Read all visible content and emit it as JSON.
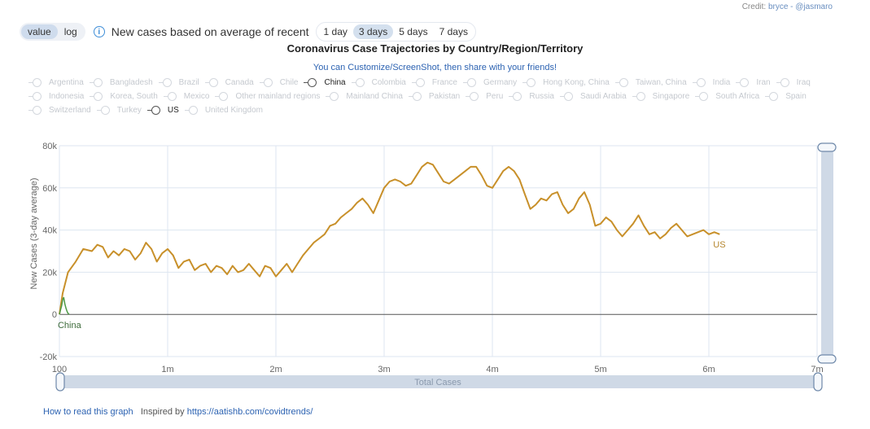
{
  "credit": {
    "label": "Credit:",
    "author": "bryce - @jasmaro"
  },
  "toolbar": {
    "modes": [
      {
        "label": "value",
        "active": true
      },
      {
        "label": "log",
        "active": false
      }
    ],
    "recent_label": "New cases based on average of recent",
    "days": [
      {
        "label": "1 day",
        "active": false
      },
      {
        "label": "3 days",
        "active": true
      },
      {
        "label": "5 days",
        "active": false
      },
      {
        "label": "7 days",
        "active": false
      }
    ]
  },
  "title": "Coronavirus Case Trajectories by Country/Region/Territory",
  "subtitle": "You can Customize/ScreenShot, then share with your friends!",
  "countries": [
    {
      "name": "Argentina",
      "selected": false
    },
    {
      "name": "Bangladesh",
      "selected": false
    },
    {
      "name": "Brazil",
      "selected": false
    },
    {
      "name": "Canada",
      "selected": false
    },
    {
      "name": "Chile",
      "selected": false
    },
    {
      "name": "China",
      "selected": true
    },
    {
      "name": "Colombia",
      "selected": false
    },
    {
      "name": "France",
      "selected": false
    },
    {
      "name": "Germany",
      "selected": false
    },
    {
      "name": "Hong Kong, China",
      "selected": false
    },
    {
      "name": "Taiwan, China",
      "selected": false
    },
    {
      "name": "India",
      "selected": false
    },
    {
      "name": "Iran",
      "selected": false
    },
    {
      "name": "Iraq",
      "selected": false
    },
    {
      "name": "Indonesia",
      "selected": false
    },
    {
      "name": "Korea, South",
      "selected": false
    },
    {
      "name": "Mexico",
      "selected": false
    },
    {
      "name": "Other mainland regions",
      "selected": false
    },
    {
      "name": "Mainland China",
      "selected": false
    },
    {
      "name": "Pakistan",
      "selected": false
    },
    {
      "name": "Peru",
      "selected": false
    },
    {
      "name": "Russia",
      "selected": false
    },
    {
      "name": "Saudi Arabia",
      "selected": false
    },
    {
      "name": "Singapore",
      "selected": false
    },
    {
      "name": "South Africa",
      "selected": false
    },
    {
      "name": "Spain",
      "selected": false
    },
    {
      "name": "Switzerland",
      "selected": false
    },
    {
      "name": "Turkey",
      "selected": false
    },
    {
      "name": "US",
      "selected": true
    },
    {
      "name": "United Kingdom",
      "selected": false
    }
  ],
  "chart_data": {
    "type": "line",
    "xlabel": "Total Cases",
    "ylabel": "New Cases (3-day average)",
    "xlim": [
      0,
      7000000
    ],
    "ylim": [
      -20000,
      80000
    ],
    "x_ticks": [
      {
        "value": 0,
        "label": "100"
      },
      {
        "value": 1000000,
        "label": "1m"
      },
      {
        "value": 2000000,
        "label": "2m"
      },
      {
        "value": 3000000,
        "label": "3m"
      },
      {
        "value": 4000000,
        "label": "4m"
      },
      {
        "value": 5000000,
        "label": "5m"
      },
      {
        "value": 6000000,
        "label": "6m"
      },
      {
        "value": 7000000,
        "label": "7m"
      }
    ],
    "y_ticks": [
      {
        "value": -20000,
        "label": "-20k"
      },
      {
        "value": 0,
        "label": "0"
      },
      {
        "value": 20000,
        "label": "20k"
      },
      {
        "value": 40000,
        "label": "40k"
      },
      {
        "value": 60000,
        "label": "60k"
      },
      {
        "value": 80000,
        "label": "80k"
      }
    ],
    "grid": true,
    "series": [
      {
        "name": "US",
        "color": "#c8902a",
        "x": [
          0,
          30000,
          80000,
          150000,
          220000,
          300000,
          350000,
          400000,
          450000,
          500000,
          550000,
          600000,
          650000,
          700000,
          750000,
          800000,
          850000,
          900000,
          950000,
          1000000,
          1050000,
          1100000,
          1150000,
          1200000,
          1250000,
          1300000,
          1350000,
          1400000,
          1450000,
          1500000,
          1550000,
          1600000,
          1650000,
          1700000,
          1750000,
          1800000,
          1850000,
          1900000,
          1950000,
          2000000,
          2050000,
          2100000,
          2150000,
          2200000,
          2250000,
          2300000,
          2350000,
          2400000,
          2450000,
          2500000,
          2550000,
          2600000,
          2650000,
          2700000,
          2750000,
          2800000,
          2850000,
          2900000,
          2950000,
          3000000,
          3050000,
          3100000,
          3150000,
          3200000,
          3250000,
          3300000,
          3350000,
          3400000,
          3450000,
          3500000,
          3550000,
          3600000,
          3650000,
          3700000,
          3750000,
          3800000,
          3850000,
          3900000,
          3950000,
          4000000,
          4050000,
          4100000,
          4150000,
          4200000,
          4250000,
          4300000,
          4350000,
          4400000,
          4450000,
          4500000,
          4550000,
          4600000,
          4650000,
          4700000,
          4750000,
          4800000,
          4850000,
          4900000,
          4950000,
          5000000,
          5050000,
          5100000,
          5150000,
          5200000,
          5250000,
          5300000,
          5350000,
          5400000,
          5450000,
          5500000,
          5550000,
          5600000,
          5650000,
          5700000,
          5750000,
          5800000,
          5850000,
          5900000,
          5950000,
          6000000,
          6050000,
          6100000
        ],
        "values": [
          0,
          10000,
          20000,
          25000,
          31000,
          30000,
          33000,
          32000,
          27000,
          30000,
          28000,
          31000,
          30000,
          26000,
          29000,
          34000,
          31000,
          25000,
          29000,
          31000,
          28000,
          22000,
          25000,
          26000,
          21000,
          23000,
          24000,
          20000,
          23000,
          22000,
          19000,
          23000,
          20000,
          21000,
          24000,
          21000,
          18000,
          23000,
          22000,
          18000,
          21000,
          24000,
          20000,
          24000,
          28000,
          31000,
          34000,
          36000,
          38000,
          42000,
          43000,
          46000,
          48000,
          50000,
          53000,
          55000,
          52000,
          48000,
          54000,
          60000,
          63000,
          64000,
          63000,
          61000,
          62000,
          66000,
          70000,
          72000,
          71000,
          67000,
          63000,
          62000,
          64000,
          66000,
          68000,
          70000,
          70000,
          66000,
          61000,
          60000,
          64000,
          68000,
          70000,
          68000,
          64000,
          57000,
          50000,
          52000,
          55000,
          54000,
          57000,
          58000,
          52000,
          48000,
          50000,
          55000,
          58000,
          52000,
          42000,
          43000,
          46000,
          44000,
          40000,
          37000,
          40000,
          43000,
          47000,
          42000,
          38000,
          39000,
          36000,
          38000,
          41000,
          43000,
          40000,
          37000,
          38000,
          39000,
          40000,
          38000,
          39000,
          38000
        ],
        "end_label": "US"
      },
      {
        "name": "China",
        "color": "#4e9a46",
        "x": [
          0,
          10000,
          20000,
          30000,
          40000,
          50000,
          60000,
          70000,
          80000,
          90000
        ],
        "values": [
          0,
          2000,
          4000,
          7000,
          8000,
          5000,
          3000,
          1500,
          500,
          0
        ],
        "end_label": "China"
      }
    ]
  },
  "footer": {
    "howto": "How to read this graph",
    "inspired": "Inspired by",
    "link": "https://aatishb.com/covidtrends/"
  }
}
